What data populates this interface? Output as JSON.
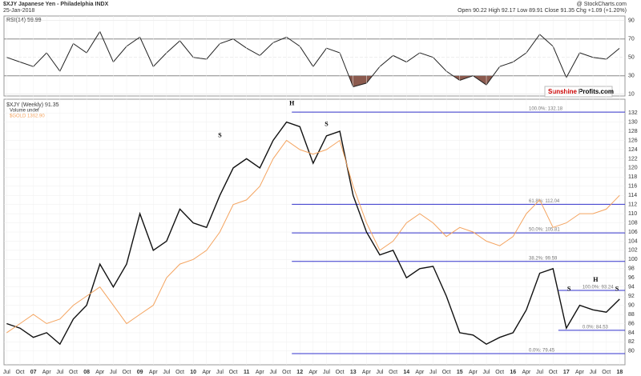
{
  "header": {
    "title": "$XJY Japanese Yen - Philadelphia INDX",
    "date": "25-Jan-2018",
    "source": "@ StockCharts.com",
    "quote": "Open 90.22 High 92.17 Low 89.91 Close 91.35 Chg +1.09 (+1.20%)"
  },
  "logo": {
    "brand": "Sunshine",
    "site": "Profits.com"
  },
  "chart_data": [
    {
      "type": "line",
      "legend": "RSI(14) 59.99",
      "ylim": [
        8,
        95
      ],
      "yticks": [
        10,
        30,
        50,
        70,
        90
      ],
      "xlim": [
        2006.45,
        2018.1
      ],
      "x": [
        2006.5,
        2006.75,
        2007,
        2007.25,
        2007.5,
        2007.75,
        2008,
        2008.25,
        2008.5,
        2008.75,
        2009,
        2009.25,
        2009.5,
        2009.75,
        2010,
        2010.25,
        2010.5,
        2010.75,
        2011,
        2011.25,
        2011.5,
        2011.75,
        2012,
        2012.25,
        2012.5,
        2012.75,
        2013,
        2013.25,
        2013.5,
        2013.75,
        2014,
        2014.25,
        2014.5,
        2014.75,
        2015,
        2015.25,
        2015.5,
        2015.75,
        2016,
        2016.25,
        2016.5,
        2016.75,
        2017,
        2017.25,
        2017.5,
        2017.75,
        2018
      ],
      "series": [
        {
          "color": "#222222",
          "oversold_color": "#8b5a4e",
          "values": [
            50,
            45,
            40,
            55,
            35,
            65,
            55,
            78,
            45,
            62,
            72,
            40,
            55,
            68,
            50,
            48,
            65,
            70,
            60,
            52,
            66,
            72,
            62,
            40,
            60,
            55,
            18,
            22,
            40,
            52,
            45,
            55,
            50,
            35,
            25,
            30,
            20,
            40,
            45,
            55,
            75,
            62,
            28,
            55,
            50,
            48,
            60
          ]
        }
      ]
    },
    {
      "type": "line",
      "ylim": [
        77,
        135
      ],
      "xlim": [
        2006.45,
        2018.1
      ],
      "yticks": [
        80,
        82,
        84,
        86,
        88,
        90,
        92,
        94,
        96,
        98,
        100,
        102,
        104,
        106,
        108,
        110,
        112,
        114,
        116,
        118,
        120,
        122,
        124,
        126,
        128,
        130,
        132
      ],
      "xticks": [
        {
          "value": 2006.5,
          "label": "Jul"
        },
        {
          "value": 2006.75,
          "label": "Oct"
        },
        {
          "value": 2007,
          "label": "07"
        },
        {
          "value": 2007.25,
          "label": "Apr"
        },
        {
          "value": 2007.5,
          "label": "Jul"
        },
        {
          "value": 2007.75,
          "label": "Oct"
        },
        {
          "value": 2008,
          "label": "08"
        },
        {
          "value": 2008.25,
          "label": "Apr"
        },
        {
          "value": 2008.5,
          "label": "Jul"
        },
        {
          "value": 2008.75,
          "label": "Oct"
        },
        {
          "value": 2009,
          "label": "09"
        },
        {
          "value": 2009.25,
          "label": "Apr"
        },
        {
          "value": 2009.5,
          "label": "Jul"
        },
        {
          "value": 2009.75,
          "label": "Oct"
        },
        {
          "value": 2010,
          "label": "10"
        },
        {
          "value": 2010.25,
          "label": "Apr"
        },
        {
          "value": 2010.5,
          "label": "Jul"
        },
        {
          "value": 2010.75,
          "label": "Oct"
        },
        {
          "value": 2011,
          "label": "11"
        },
        {
          "value": 2011.25,
          "label": "Apr"
        },
        {
          "value": 2011.5,
          "label": "Jul"
        },
        {
          "value": 2011.75,
          "label": "Oct"
        },
        {
          "value": 2012,
          "label": "12"
        },
        {
          "value": 2012.25,
          "label": "Apr"
        },
        {
          "value": 2012.5,
          "label": "Jul"
        },
        {
          "value": 2012.75,
          "label": "Oct"
        },
        {
          "value": 2013,
          "label": "13"
        },
        {
          "value": 2013.25,
          "label": "Apr"
        },
        {
          "value": 2013.5,
          "label": "Jul"
        },
        {
          "value": 2013.75,
          "label": "Oct"
        },
        {
          "value": 2014,
          "label": "14"
        },
        {
          "value": 2014.25,
          "label": "Apr"
        },
        {
          "value": 2014.5,
          "label": "Jul"
        },
        {
          "value": 2014.75,
          "label": "Oct"
        },
        {
          "value": 2015,
          "label": "15"
        },
        {
          "value": 2015.25,
          "label": "Apr"
        },
        {
          "value": 2015.5,
          "label": "Jul"
        },
        {
          "value": 2015.75,
          "label": "Oct"
        },
        {
          "value": 2016,
          "label": "16"
        },
        {
          "value": 2016.25,
          "label": "Apr"
        },
        {
          "value": 2016.5,
          "label": "Jul"
        },
        {
          "value": 2016.75,
          "label": "Oct"
        },
        {
          "value": 2017,
          "label": "17"
        },
        {
          "value": 2017.25,
          "label": "Apr"
        },
        {
          "value": 2017.5,
          "label": "Jul"
        },
        {
          "value": 2017.75,
          "label": "Oct"
        },
        {
          "value": 2018,
          "label": "18"
        }
      ],
      "x": [
        2006.5,
        2006.75,
        2007,
        2007.25,
        2007.5,
        2007.75,
        2008,
        2008.25,
        2008.5,
        2008.75,
        2009,
        2009.25,
        2009.5,
        2009.75,
        2010,
        2010.25,
        2010.5,
        2010.75,
        2011,
        2011.25,
        2011.5,
        2011.75,
        2012,
        2012.25,
        2012.5,
        2012.75,
        2013,
        2013.25,
        2013.5,
        2013.75,
        2014,
        2014.25,
        2014.5,
        2014.75,
        2015,
        2015.25,
        2015.5,
        2015.75,
        2016,
        2016.25,
        2016.5,
        2016.75,
        2017,
        2017.25,
        2017.5,
        2017.75,
        2018
      ],
      "series": [
        {
          "name": "$XJY (Weekly) 91.35",
          "color": "#111111",
          "values": [
            86,
            85,
            83,
            84,
            81.5,
            87,
            90,
            99,
            94,
            99,
            110,
            102,
            104,
            111,
            108,
            107,
            114,
            120,
            122,
            120,
            126,
            130,
            129,
            121,
            127,
            128,
            114,
            106,
            101,
            102,
            96,
            98,
            98.5,
            92,
            84,
            83.5,
            81.5,
            83,
            84,
            89,
            97,
            98,
            85,
            90,
            89,
            88.5,
            91.35
          ]
        },
        {
          "name": "$GOLD 1362.90",
          "color": "#f4a460",
          "values": [
            84,
            86,
            88,
            86,
            87,
            90,
            92,
            94,
            90,
            86,
            88,
            90,
            96,
            99,
            100,
            102,
            106,
            112,
            113,
            116,
            122,
            126,
            124,
            123,
            124,
            126,
            116,
            108,
            102,
            104,
            108,
            110,
            108,
            105,
            107,
            106,
            104,
            103,
            105,
            110,
            113,
            107,
            108,
            110,
            110,
            111,
            114
          ]
        }
      ],
      "legend_extra": "Volume undef",
      "levels": [
        {
          "value": 132.18,
          "label": "100.0%: 132.18",
          "from": 2011.85
        },
        {
          "value": 112.04,
          "label": "61.8%: 112.04",
          "from": 2011.85
        },
        {
          "value": 105.81,
          "label": "50.0%: 105.81",
          "from": 2011.85
        },
        {
          "value": 99.59,
          "label": "38.2%: 99.59",
          "from": 2011.85
        },
        {
          "value": 79.45,
          "label": "0.0%: 79.45",
          "from": 2011.85
        },
        {
          "value": 93.24,
          "label": "100.0%: 93.24",
          "from": 2016.85
        },
        {
          "value": 84.53,
          "label": "0.0%: 84.53",
          "from": 2016.85
        }
      ],
      "level_color": "#3333cc",
      "annotations": [
        {
          "text": "H",
          "x": 2011.85,
          "y": 134
        },
        {
          "text": "S",
          "x": 2010.5,
          "y": 127
        },
        {
          "text": "S",
          "x": 2012.5,
          "y": 129.5
        },
        {
          "text": "H",
          "x": 2017.55,
          "y": 95.5
        },
        {
          "text": "S",
          "x": 2017.05,
          "y": 93.5
        },
        {
          "text": "S",
          "x": 2017.95,
          "y": 93.5
        }
      ]
    }
  ]
}
